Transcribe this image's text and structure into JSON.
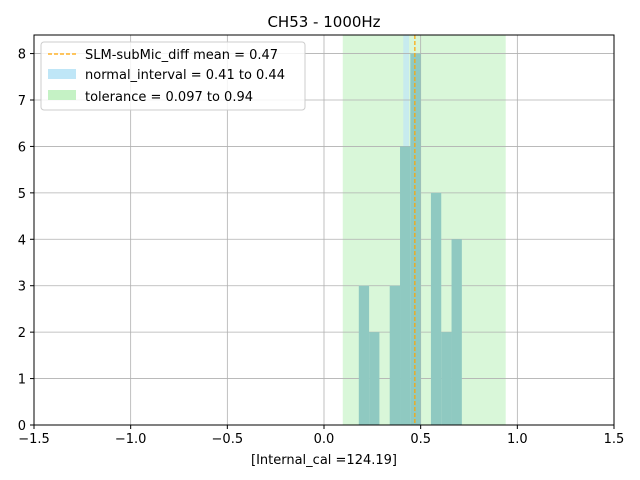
{
  "chart_data": {
    "type": "histogram",
    "title": "CH53 - 1000Hz",
    "xlabel": "[Internal_cal =124.19]",
    "ylabel": "",
    "xlim": [
      -1.5,
      1.5
    ],
    "ylim": [
      0,
      8.4
    ],
    "xticks": [
      -1.5,
      -1.0,
      -0.5,
      0.0,
      0.5,
      1.0,
      1.5
    ],
    "xtick_labels": [
      "−1.5",
      "−1.0",
      "−0.5",
      "0.0",
      "0.5",
      "1.0",
      "1.5"
    ],
    "yticks": [
      0,
      1,
      2,
      3,
      4,
      5,
      6,
      7,
      8
    ],
    "ytick_labels": [
      "0",
      "1",
      "2",
      "3",
      "4",
      "5",
      "6",
      "7",
      "8"
    ],
    "grid": true,
    "legend_position": "top-left",
    "bin_width": 0.0533,
    "bins": [
      {
        "start": 0.18,
        "count": 3
      },
      {
        "start": 0.2333,
        "count": 2
      },
      {
        "start": 0.3399,
        "count": 3
      },
      {
        "start": 0.3932,
        "count": 6
      },
      {
        "start": 0.4465,
        "count": 8
      },
      {
        "start": 0.5531,
        "count": 5
      },
      {
        "start": 0.6064,
        "count": 2
      },
      {
        "start": 0.6597,
        "count": 4
      }
    ],
    "bar_color": "#8fc9c1",
    "mean": {
      "value": 0.47,
      "label": "SLM-subMic_diff mean = 0.47",
      "color": "#ffa500"
    },
    "normal_interval": {
      "range": [
        0.41,
        0.44
      ],
      "label": "normal_interval = 0.41 to 0.44",
      "color": "#bfe6f7"
    },
    "tolerance": {
      "range": [
        0.097,
        0.94
      ],
      "label": "tolerance = 0.097 to 0.94",
      "color": "#c5f2c5"
    }
  }
}
